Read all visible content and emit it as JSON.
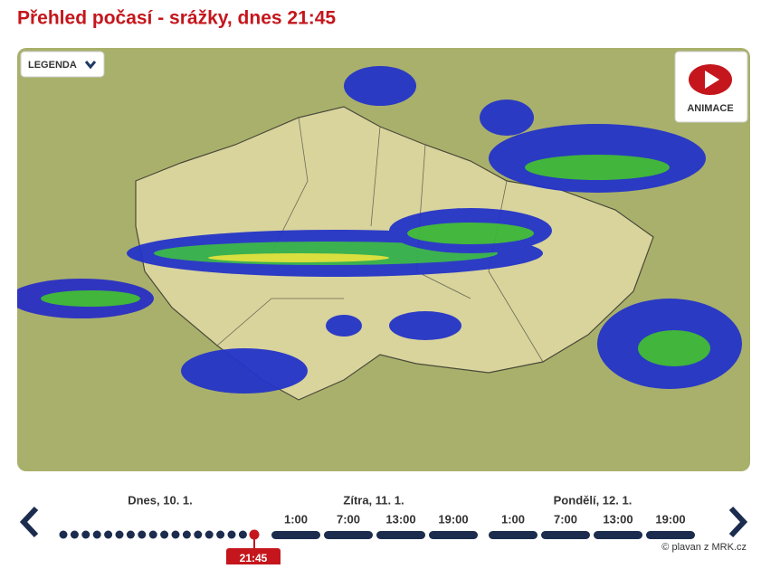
{
  "header": {
    "title": "Přehled počasí - srážky, dnes 21:45"
  },
  "map": {
    "legend_button": "LEGENDA",
    "animation_button": "ANIMACE"
  },
  "timeline": {
    "days": [
      {
        "label": "Dnes, 10. 1."
      },
      {
        "label": "Zítra, 11. 1.",
        "times": [
          "1:00",
          "7:00",
          "13:00",
          "19:00"
        ]
      },
      {
        "label": "Pondělí, 12. 1.",
        "times": [
          "1:00",
          "7:00",
          "13:00",
          "19:00"
        ]
      }
    ],
    "current_time": "21:45"
  },
  "credit": "© plavan z MRK.cz"
}
